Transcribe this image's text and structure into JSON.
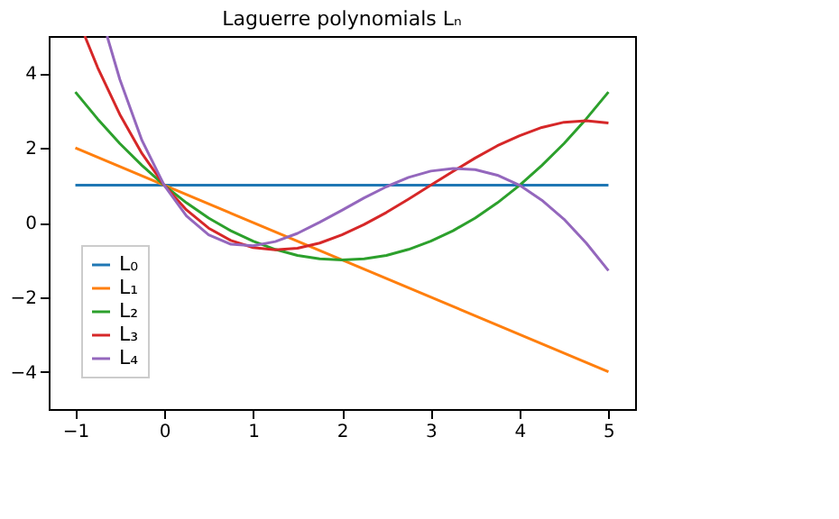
{
  "chart_data": {
    "type": "line",
    "title": "Laguerre polynomials Lₙ",
    "xlim": [
      -1.3,
      5.3
    ],
    "ylim": [
      -5,
      5
    ],
    "xticks": [
      -1,
      0,
      1,
      2,
      3,
      4,
      5
    ],
    "yticks": [
      -4,
      -2,
      0,
      2,
      4
    ],
    "grid": false,
    "legend": "bottom left",
    "marker": "none",
    "line_style": "solid",
    "series": [
      {
        "name": "L₀",
        "color": "#1f77b4",
        "x": [
          -1,
          5
        ],
        "values": [
          1,
          1
        ]
      },
      {
        "name": "L₁",
        "color": "#ff7f0e",
        "x": [
          -1,
          5
        ],
        "values": [
          2,
          -4
        ]
      },
      {
        "name": "L₂",
        "color": "#2ca02c",
        "x": [
          -1,
          -0.75,
          -0.5,
          -0.25,
          0,
          0.25,
          0.5,
          0.75,
          1,
          1.25,
          1.5,
          1.75,
          2,
          2.25,
          2.5,
          2.75,
          3,
          3.25,
          3.5,
          3.75,
          4,
          4.25,
          4.5,
          4.75,
          5
        ],
        "values": [
          3.5,
          2.78,
          2.12,
          1.53,
          1,
          0.53,
          0.12,
          -0.22,
          -0.5,
          -0.72,
          -0.88,
          -0.97,
          -1,
          -0.97,
          -0.88,
          -0.72,
          -0.5,
          -0.22,
          0.12,
          0.53,
          1,
          1.53,
          2.12,
          2.78,
          3.5
        ]
      },
      {
        "name": "L₃",
        "color": "#d62728",
        "x": [
          -0.894,
          -0.75,
          -0.5,
          -0.25,
          0,
          0.25,
          0.5,
          0.75,
          1,
          1.25,
          1.5,
          1.75,
          2,
          2.25,
          2.5,
          2.75,
          3,
          3.25,
          3.5,
          3.75,
          4,
          4.25,
          4.5,
          4.75,
          5
        ],
        "values": [
          5,
          4.16,
          2.9,
          1.85,
          1,
          0.34,
          -0.15,
          -0.48,
          -0.67,
          -0.73,
          -0.69,
          -0.55,
          -0.33,
          -0.05,
          0.27,
          0.63,
          1,
          1.37,
          1.73,
          2.06,
          2.33,
          2.55,
          2.69,
          2.73,
          2.67
        ]
      },
      {
        "name": "L₄",
        "color": "#9467bd",
        "x": [
          -0.643,
          -0.5,
          -0.25,
          0,
          0.25,
          0.5,
          0.75,
          1,
          1.25,
          1.5,
          1.75,
          2,
          2.25,
          2.5,
          2.75,
          3,
          3.25,
          3.5,
          3.75,
          4,
          4.25,
          4.5,
          4.75,
          5
        ],
        "values": [
          5,
          3.84,
          2.2,
          1,
          0.18,
          -0.33,
          -0.58,
          -0.62,
          -0.51,
          -0.29,
          0.01,
          0.33,
          0.66,
          0.96,
          1.21,
          1.38,
          1.45,
          1.42,
          1.27,
          1,
          0.6,
          0.09,
          -0.55,
          -1.29
        ]
      }
    ]
  }
}
